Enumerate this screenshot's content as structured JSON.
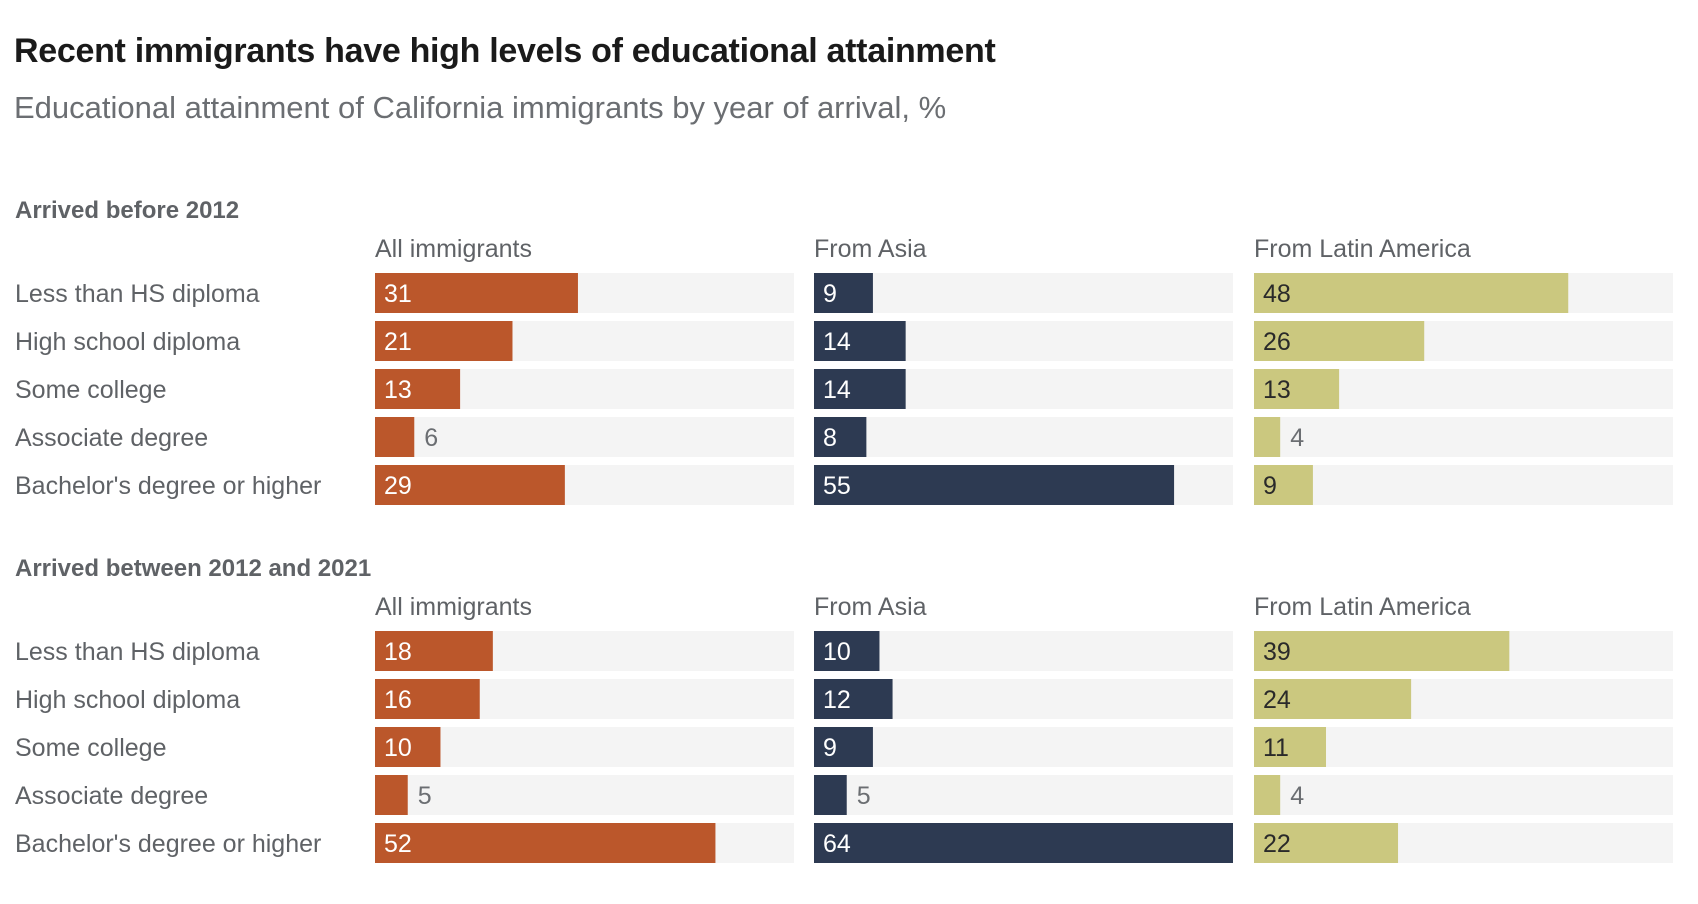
{
  "title": "Recent immigrants have high levels of educational attainment",
  "subtitle": "Educational attainment of California immigrants by year of arrival, %",
  "colors": {
    "all_immigrants": "#bb572b",
    "from_asia": "#2d3a52",
    "from_latin_america": "#cbc87f",
    "track": "#f4f4f4",
    "label_inside_light": "#ffffff",
    "label_inside_dark": "#2a2a2a",
    "label_outside": "#6b6e72"
  },
  "chart_data": {
    "type": "bar",
    "orientation": "horizontal",
    "title": "Recent immigrants have high levels of educational attainment",
    "subtitle": "Educational attainment of California immigrants by year of arrival, %",
    "xlim": [
      0,
      64
    ],
    "categories": [
      "Less than HS diploma",
      "High school diploma",
      "Some college",
      "Associate degree",
      "Bachelor's degree or higher"
    ],
    "panels": [
      {
        "title": "Arrived before 2012",
        "series": [
          {
            "name": "All immigrants",
            "color_key": "all_immigrants",
            "values": [
              31,
              21,
              13,
              6,
              29
            ]
          },
          {
            "name": "From Asia",
            "color_key": "from_asia",
            "values": [
              9,
              14,
              14,
              8,
              55
            ]
          },
          {
            "name": "From Latin America",
            "color_key": "from_latin_america",
            "values": [
              48,
              26,
              13,
              4,
              9
            ]
          }
        ]
      },
      {
        "title": "Arrived between 2012 and 2021",
        "series": [
          {
            "name": "All immigrants",
            "color_key": "all_immigrants",
            "values": [
              18,
              16,
              10,
              5,
              52
            ]
          },
          {
            "name": "From Asia",
            "color_key": "from_asia",
            "values": [
              10,
              12,
              9,
              5,
              64
            ]
          },
          {
            "name": "From Latin America",
            "color_key": "from_latin_america",
            "values": [
              39,
              24,
              11,
              4,
              22
            ]
          }
        ]
      }
    ],
    "grid": false,
    "legend": "none"
  }
}
